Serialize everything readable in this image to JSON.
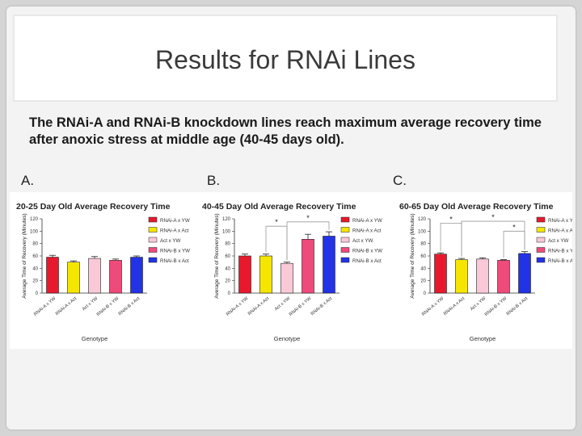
{
  "slide": {
    "title": "Results for RNAi Lines",
    "subtitle": "The RNAi-A and RNAi-B knockdown lines reach maximum average recovery time after anoxic stress at middle age (40-45 days old).",
    "panel_labels": [
      "A.",
      "B.",
      "C."
    ]
  },
  "chart_data": [
    {
      "type": "bar",
      "title": "20-25 Day Old Average Recovery Time",
      "xlabel": "Genotype",
      "ylabel": "Average Time of Recovery (Minutes)",
      "ylim": [
        0,
        120
      ],
      "yticks": [
        0,
        20,
        40,
        60,
        80,
        100,
        120
      ],
      "categories": [
        "RNAi-A x YW",
        "RNAi-A x Act",
        "Act x YW",
        "RNAi-B x YW",
        "RNAi-B x Act"
      ],
      "values": [
        58,
        50,
        56,
        53,
        58
      ],
      "errors": [
        3,
        2,
        3,
        2,
        2
      ],
      "colors": [
        "#e8192c",
        "#f5e600",
        "#f9c9d8",
        "#ee4a7a",
        "#2233e6"
      ],
      "legend": [
        "RNAi-A x YW",
        "RNAi-A x Act",
        "Act x YW",
        "RNAi-B x YW",
        "RNAi-B x Act"
      ],
      "significance": []
    },
    {
      "type": "bar",
      "title": "40-45 Day Old Average Recovery Time",
      "xlabel": "Genotype",
      "ylabel": "Average Time of Recovery (Minutes)",
      "ylim": [
        0,
        120
      ],
      "yticks": [
        0,
        20,
        40,
        60,
        80,
        100,
        120
      ],
      "categories": [
        "RNAi-A x YW",
        "RNAi-A x Act",
        "Act x YW",
        "RNAi-B x YW",
        "RNAi-B x Act"
      ],
      "values": [
        60,
        60,
        48,
        87,
        92
      ],
      "errors": [
        3,
        3,
        2,
        8,
        7
      ],
      "colors": [
        "#e8192c",
        "#f5e600",
        "#f9c9d8",
        "#ee4a7a",
        "#2233e6"
      ],
      "legend": [
        "RNAi-A x YW",
        "RNAi-A x Act",
        "Act x YW",
        "RNAi-B x YW",
        "RNAi-B x Act"
      ],
      "significance": [
        {
          "from": 1,
          "to": 2,
          "label": "*",
          "level": 108
        },
        {
          "from": 2,
          "to": 4,
          "label": "*",
          "level": 115
        }
      ]
    },
    {
      "type": "bar",
      "title": "60-65 Day Old Average Recovery Time",
      "xlabel": "Genotype",
      "ylabel": "Average Time of Recovery (Minutes)",
      "ylim": [
        0,
        120
      ],
      "yticks": [
        0,
        20,
        40,
        60,
        80,
        100,
        120
      ],
      "categories": [
        "RNAi-A x YW",
        "RNAi-A x Act",
        "Act x YW",
        "RNAi-B x YW",
        "RNAi-B x Act"
      ],
      "values": [
        63,
        54,
        55,
        53,
        64
      ],
      "errors": [
        2,
        2,
        2,
        1,
        3
      ],
      "colors": [
        "#e8192c",
        "#f5e600",
        "#f9c9d8",
        "#ee4a7a",
        "#2233e6"
      ],
      "legend": [
        "RNAi-A x Yw",
        "RNAi-A x Act",
        "Act x YW",
        "RNAi-B x YW",
        "RNAi-B x Act"
      ],
      "significance": [
        {
          "from": 0,
          "to": 1,
          "label": "*",
          "level": 113
        },
        {
          "from": 1,
          "to": 4,
          "label": "*",
          "level": 116
        },
        {
          "from": 3,
          "to": 4,
          "label": "*",
          "level": 100
        }
      ]
    }
  ]
}
